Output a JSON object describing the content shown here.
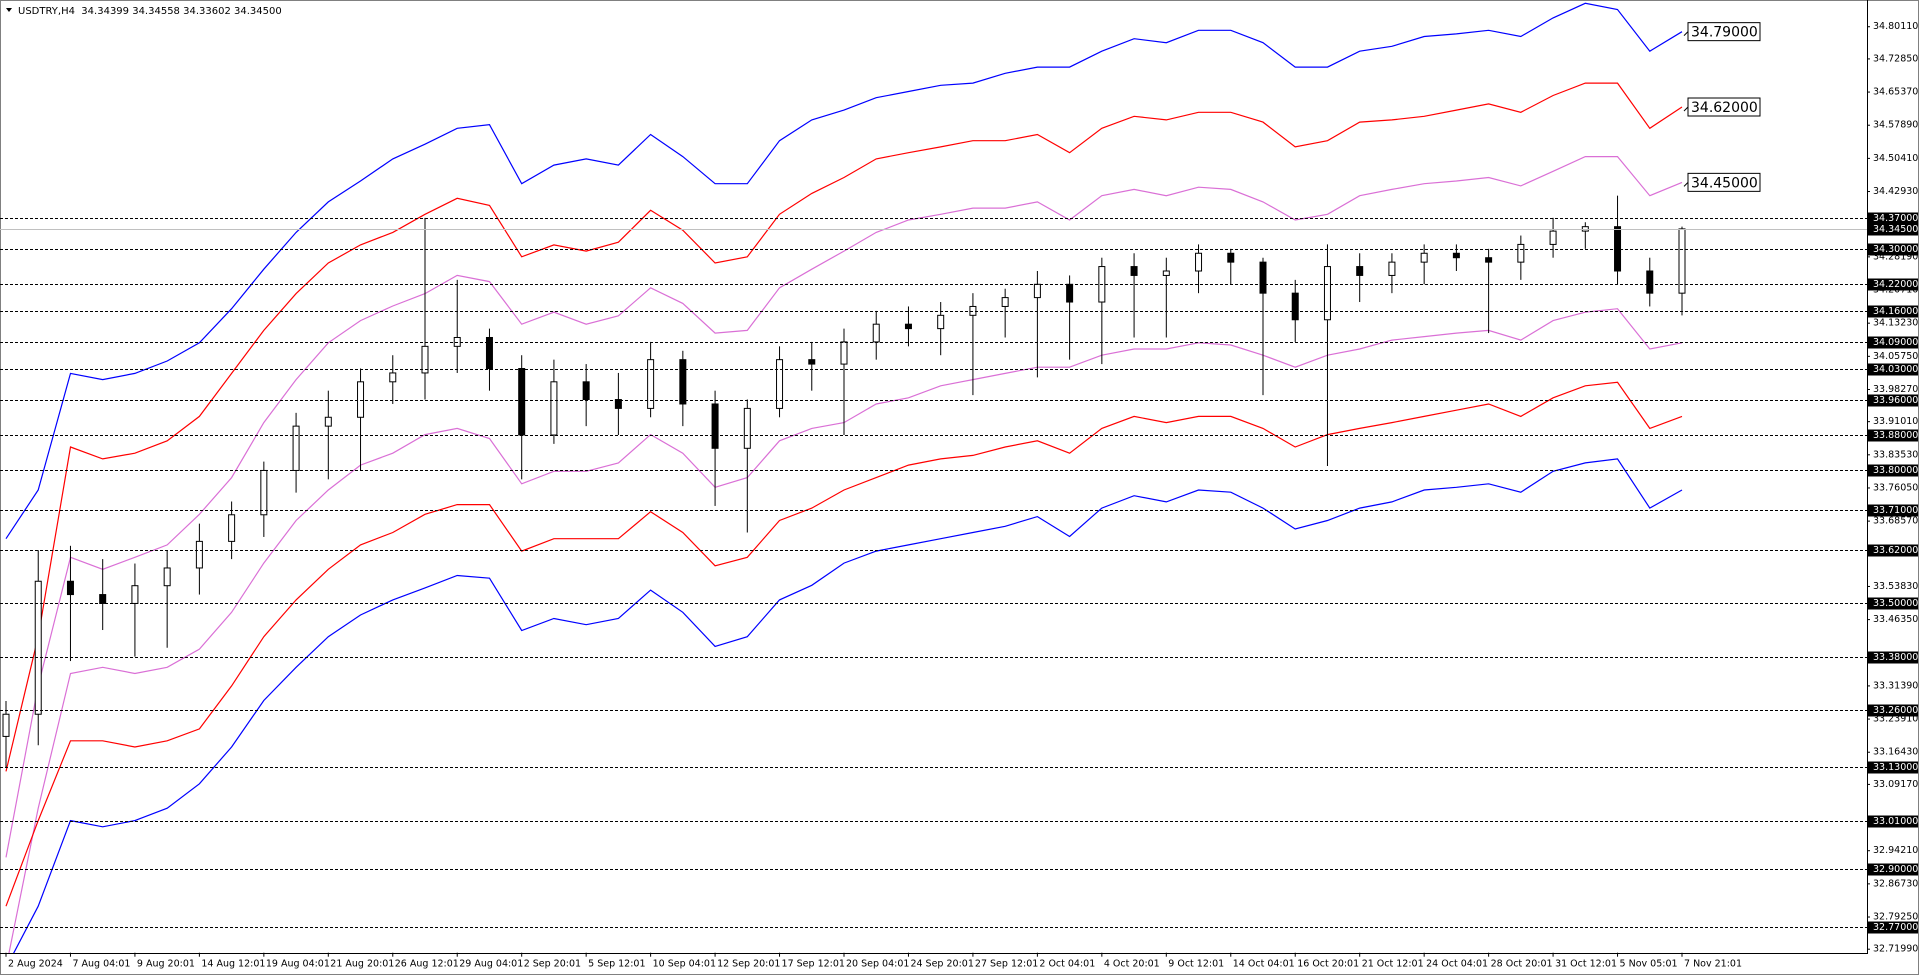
{
  "chart_data": {
    "type": "candlestick",
    "title": "USDTRY,H4  34.34399 34.34558 34.33602 34.34500",
    "categories": [
      "2 Aug 2024",
      null,
      "7 Aug 04:01",
      null,
      "9 Aug 20:01",
      null,
      "14 Aug 12:01",
      null,
      "19 Aug 04:01",
      null,
      "21 Aug 20:01",
      null,
      "26 Aug 12:01",
      null,
      "29 Aug 04:01",
      null,
      "2 Sep 20:01",
      null,
      "5 Sep 12:01",
      null,
      "10 Sep 04:01",
      null,
      "12 Sep 20:01",
      null,
      "17 Sep 12:01",
      null,
      "20 Sep 04:01",
      null,
      "24 Sep 20:01",
      null,
      "27 Sep 12:01",
      null,
      "2 Oct 04:01",
      null,
      "4 Oct 20:01",
      null,
      "9 Oct 12:01",
      null,
      "14 Oct 04:01",
      null,
      "16 Oct 20:01",
      null,
      "21 Oct 12:01",
      null,
      "24 Oct 04:01",
      null,
      "28 Oct 20:01",
      null,
      "31 Oct 12:01",
      null,
      "5 Nov 05:01",
      null,
      "7 Nov 21:01"
    ],
    "open": [
      33.2,
      33.25,
      33.55,
      33.52,
      33.5,
      33.54,
      33.58,
      33.64,
      33.7,
      33.8,
      33.9,
      33.92,
      34.0,
      34.02,
      34.08,
      34.1,
      34.03,
      33.88,
      34.0,
      33.96,
      33.94,
      34.05,
      33.95,
      33.85,
      33.94,
      34.05,
      34.04,
      34.09,
      34.13,
      34.12,
      34.15,
      34.17,
      34.19,
      34.22,
      34.18,
      34.26,
      34.24,
      34.25,
      34.29,
      34.27,
      34.2,
      34.14,
      34.26,
      34.24,
      34.27,
      34.29,
      34.28,
      34.27,
      34.31,
      34.34,
      34.35,
      34.25,
      34.2
    ],
    "high": [
      33.28,
      33.62,
      33.63,
      33.6,
      33.59,
      33.62,
      33.68,
      33.73,
      33.82,
      33.93,
      33.98,
      34.03,
      34.06,
      34.37,
      34.23,
      34.12,
      34.06,
      34.05,
      34.04,
      34.02,
      34.09,
      34.07,
      33.98,
      33.96,
      34.08,
      34.09,
      34.12,
      34.16,
      34.17,
      34.18,
      34.2,
      34.21,
      34.25,
      34.24,
      34.28,
      34.29,
      34.28,
      34.31,
      34.3,
      34.28,
      34.23,
      34.31,
      34.29,
      34.29,
      34.31,
      34.31,
      34.3,
      34.33,
      34.37,
      34.36,
      34.42,
      34.28,
      34.35
    ],
    "low": [
      33.13,
      33.18,
      33.37,
      33.44,
      33.38,
      33.4,
      33.52,
      33.6,
      33.65,
      33.75,
      33.78,
      33.8,
      33.95,
      33.96,
      34.02,
      33.98,
      33.78,
      33.86,
      33.9,
      33.88,
      33.92,
      33.9,
      33.72,
      33.66,
      33.92,
      33.98,
      33.88,
      34.05,
      34.08,
      34.06,
      33.97,
      34.1,
      34.01,
      34.05,
      34.04,
      34.1,
      34.1,
      34.2,
      34.22,
      33.97,
      34.09,
      33.81,
      34.18,
      34.2,
      34.22,
      34.25,
      34.11,
      34.23,
      34.28,
      34.3,
      34.22,
      34.17,
      34.15
    ],
    "close": [
      33.25,
      33.55,
      33.52,
      33.5,
      33.54,
      33.58,
      33.64,
      33.7,
      33.8,
      33.9,
      33.92,
      34.0,
      34.02,
      34.08,
      34.1,
      34.03,
      33.88,
      34.0,
      33.96,
      33.94,
      34.05,
      33.95,
      33.85,
      33.94,
      34.05,
      34.04,
      34.09,
      34.13,
      34.12,
      34.15,
      34.17,
      34.19,
      34.22,
      34.18,
      34.26,
      34.24,
      34.25,
      34.29,
      34.27,
      34.2,
      34.14,
      34.26,
      34.24,
      34.27,
      34.29,
      34.28,
      34.27,
      34.31,
      34.34,
      34.35,
      34.25,
      34.2,
      34.345
    ],
    "candle_color": "#000000",
    "series": [
      {
        "color": "#0000ff",
        "values": [
          33.646,
          33.756,
          34.019,
          34.005,
          34.019,
          34.047,
          34.088,
          34.165,
          34.254,
          34.337,
          34.406,
          34.453,
          34.503,
          34.536,
          34.572,
          34.58,
          34.447,
          34.489,
          34.503,
          34.489,
          34.558,
          34.508,
          34.447,
          34.447,
          34.544,
          34.591,
          34.613,
          34.641,
          34.655,
          34.669,
          34.674,
          34.696,
          34.71,
          34.71,
          34.746,
          34.774,
          34.765,
          34.793,
          34.793,
          34.765,
          34.71,
          34.71,
          34.746,
          34.757,
          34.779,
          34.785,
          34.793,
          34.779,
          34.821,
          34.854,
          34.84,
          34.746,
          34.79
        ]
      },
      {
        "color": "#ff0000",
        "values": [
          33.121,
          33.425,
          33.853,
          33.826,
          33.839,
          33.867,
          33.922,
          34.019,
          34.116,
          34.199,
          34.268,
          34.309,
          34.337,
          34.378,
          34.414,
          34.398,
          34.282,
          34.309,
          34.295,
          34.315,
          34.387,
          34.342,
          34.268,
          34.282,
          34.378,
          34.425,
          34.461,
          34.503,
          34.517,
          34.53,
          34.544,
          34.544,
          34.558,
          34.517,
          34.572,
          34.599,
          34.591,
          34.608,
          34.608,
          34.586,
          34.53,
          34.544,
          34.586,
          34.591,
          34.599,
          34.613,
          34.627,
          34.608,
          34.646,
          34.674,
          34.674,
          34.572,
          34.62
        ]
      },
      {
        "color": "#da70d6",
        "values": [
          32.927,
          33.314,
          33.604,
          33.577,
          33.604,
          33.632,
          33.701,
          33.784,
          33.908,
          34.005,
          34.088,
          34.138,
          34.171,
          34.199,
          34.24,
          34.226,
          34.13,
          34.157,
          34.13,
          34.149,
          34.212,
          34.177,
          34.11,
          34.116,
          34.212,
          34.254,
          34.295,
          34.337,
          34.365,
          34.378,
          34.392,
          34.392,
          34.406,
          34.365,
          34.42,
          34.434,
          34.42,
          34.439,
          34.434,
          34.406,
          34.365,
          34.378,
          34.42,
          34.434,
          34.447,
          34.453,
          34.461,
          34.442,
          34.475,
          34.508,
          34.508,
          34.42,
          34.45
        ]
      },
      {
        "color": "#da70d6",
        "values": [
          32.678,
          33.038,
          33.342,
          33.356,
          33.342,
          33.356,
          33.397,
          33.48,
          33.591,
          33.687,
          33.756,
          33.812,
          33.839,
          33.881,
          33.895,
          33.872,
          33.77,
          33.798,
          33.798,
          33.817,
          33.881,
          33.839,
          33.762,
          33.784,
          33.867,
          33.895,
          33.908,
          33.95,
          33.964,
          33.991,
          34.005,
          34.019,
          34.033,
          34.033,
          34.06,
          34.074,
          34.074,
          34.088,
          34.083,
          34.06,
          34.033,
          34.06,
          34.074,
          34.094,
          34.102,
          34.11,
          34.116,
          34.094,
          34.138,
          34.157,
          34.165,
          34.074,
          34.088
        ]
      },
      {
        "color": "#ff0000",
        "values": [
          32.817,
          33.01,
          33.19,
          33.19,
          33.176,
          33.19,
          33.217,
          33.314,
          33.425,
          33.508,
          33.577,
          33.632,
          33.66,
          33.701,
          33.723,
          33.723,
          33.618,
          33.646,
          33.646,
          33.646,
          33.707,
          33.66,
          33.585,
          33.604,
          33.687,
          33.715,
          33.756,
          33.784,
          33.812,
          33.826,
          33.834,
          33.853,
          33.867,
          33.839,
          33.895,
          33.922,
          33.908,
          33.922,
          33.922,
          33.895,
          33.853,
          33.881,
          33.895,
          33.908,
          33.922,
          33.936,
          33.95,
          33.922,
          33.964,
          33.991,
          33.999,
          33.895,
          33.922
        ]
      },
      {
        "color": "#0000ff",
        "values": [
          32.678,
          32.817,
          33.01,
          32.996,
          33.01,
          33.038,
          33.093,
          33.176,
          33.281,
          33.356,
          33.425,
          33.474,
          33.508,
          33.535,
          33.563,
          33.557,
          33.439,
          33.466,
          33.452,
          33.466,
          33.53,
          33.48,
          33.403,
          33.425,
          33.508,
          33.541,
          33.591,
          33.618,
          33.632,
          33.646,
          33.66,
          33.674,
          33.696,
          33.651,
          33.715,
          33.743,
          33.729,
          33.756,
          33.751,
          33.715,
          33.668,
          33.687,
          33.715,
          33.729,
          33.756,
          33.762,
          33.77,
          33.751,
          33.798,
          33.817,
          33.826,
          33.715,
          33.756
        ]
      }
    ],
    "ylim": [
      32.712,
      34.856
    ],
    "yticks": [
      {
        "value": 34.8011,
        "label": "34.80110"
      },
      {
        "value": 34.7285,
        "label": "34.72850"
      },
      {
        "value": 34.6537,
        "label": "34.65370"
      },
      {
        "value": 34.5789,
        "label": "34.57890"
      },
      {
        "value": 34.5041,
        "label": "34.50410"
      },
      {
        "value": 34.4293,
        "label": "34.42930"
      },
      {
        "value": 34.2819,
        "label": "34.28190"
      },
      {
        "value": 34.2071,
        "label": "34.20710"
      },
      {
        "value": 34.1323,
        "label": "34.13230"
      },
      {
        "value": 34.0575,
        "label": "34.05750"
      },
      {
        "value": 33.9827,
        "label": "33.98270"
      },
      {
        "value": 33.9101,
        "label": "33.91010"
      },
      {
        "value": 33.8353,
        "label": "33.83530"
      },
      {
        "value": 33.7605,
        "label": "33.76050"
      },
      {
        "value": 33.6857,
        "label": "33.68570"
      },
      {
        "value": 33.5383,
        "label": "33.53830"
      },
      {
        "value": 33.4635,
        "label": "33.46350"
      },
      {
        "value": 33.3139,
        "label": "33.31390"
      },
      {
        "value": 33.2391,
        "label": "33.23910"
      },
      {
        "value": 33.1643,
        "label": "33.16430"
      },
      {
        "value": 33.0917,
        "label": "33.09170"
      },
      {
        "value": 32.9421,
        "label": "32.94210"
      },
      {
        "value": 32.8673,
        "label": "32.86730"
      },
      {
        "value": 32.7925,
        "label": "32.79250"
      },
      {
        "value": 32.7199,
        "label": "32.71990"
      }
    ],
    "levels": [
      {
        "value": 34.37,
        "label": "34.37000"
      },
      {
        "value": 34.3,
        "label": "34.30000"
      },
      {
        "value": 34.22,
        "label": "34.22000"
      },
      {
        "value": 34.16,
        "label": "34.16000"
      },
      {
        "value": 34.09,
        "label": "34.09000"
      },
      {
        "value": 34.03,
        "label": "34.03000"
      },
      {
        "value": 33.96,
        "label": "33.96000"
      },
      {
        "value": 33.88,
        "label": "33.88000"
      },
      {
        "value": 33.8,
        "label": "33.80000"
      },
      {
        "value": 33.71,
        "label": "33.71000"
      },
      {
        "value": 33.62,
        "label": "33.62000"
      },
      {
        "value": 33.5,
        "label": "33.50000"
      },
      {
        "value": 33.38,
        "label": "33.38000"
      },
      {
        "value": 33.26,
        "label": "33.26000"
      },
      {
        "value": 33.13,
        "label": "33.13000"
      },
      {
        "value": 33.01,
        "label": "33.01000"
      },
      {
        "value": 32.9,
        "label": "32.90000"
      },
      {
        "value": 32.77,
        "label": "32.77000"
      }
    ],
    "current_price": {
      "value": 34.345,
      "label": "34.34500"
    },
    "annotations": [
      {
        "value": 34.79,
        "label": "34.79000"
      },
      {
        "value": 34.62,
        "label": "34.62000"
      },
      {
        "value": 34.45,
        "label": "34.45000"
      }
    ]
  }
}
